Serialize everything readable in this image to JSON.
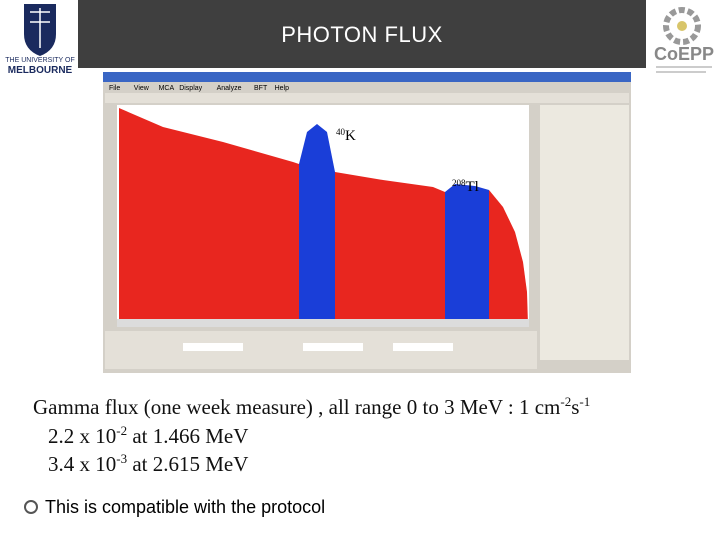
{
  "header": {
    "title": "PHOTON FLUX"
  },
  "logos": {
    "left": [
      "THE UNIVERSITY OF",
      "MELBOURNE"
    ],
    "right": "CoEPP"
  },
  "software": {
    "menu": [
      "File",
      "View",
      "MCA",
      "Display",
      "Analyze",
      "BFT",
      "Help"
    ]
  },
  "spectrum": {
    "peaks": [
      {
        "mass": "40",
        "element": "K"
      },
      {
        "mass": "208",
        "element": "Tl"
      }
    ]
  },
  "body": {
    "lines": [
      [
        {
          "text": "Gamma flux (one week measure) , all range 0 to 3 MeV : 1 cm",
          "sup": "-2"
        },
        {
          "text": "s",
          "sup": "-1"
        }
      ],
      [
        {
          "text": "2.2 x 10",
          "sup": "-2"
        },
        {
          "text": " at 1.466 MeV"
        }
      ],
      [
        {
          "text": "3.4 x 10",
          "sup": "-3"
        },
        {
          "text": " at 2.615 MeV"
        }
      ]
    ],
    "bullet": "This is compatible with the protocol"
  }
}
